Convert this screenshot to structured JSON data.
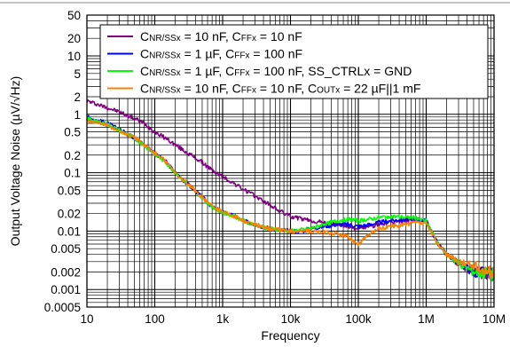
{
  "chart_data": {
    "type": "line",
    "title": "",
    "xlabel": "Frequency",
    "ylabel": "Output Voltage Noise (µV/√Hz)",
    "x_scale": "log",
    "y_scale": "log",
    "xlim": [
      10,
      10000000
    ],
    "ylim": [
      0.0005,
      50
    ],
    "grid": true,
    "legend_position": "top-right",
    "x_ticks": [
      {
        "value": 10,
        "label": "10"
      },
      {
        "value": 100,
        "label": "100"
      },
      {
        "value": 1000,
        "label": "1k"
      },
      {
        "value": 10000,
        "label": "10k"
      },
      {
        "value": 100000,
        "label": "100k"
      },
      {
        "value": 1000000,
        "label": "1M"
      },
      {
        "value": 10000000,
        "label": "10M"
      }
    ],
    "y_ticks": [
      {
        "value": 50,
        "label": "50"
      },
      {
        "value": 20,
        "label": "20"
      },
      {
        "value": 10,
        "label": "10"
      },
      {
        "value": 5,
        "label": "5"
      },
      {
        "value": 2,
        "label": "2"
      },
      {
        "value": 1,
        "label": "1"
      },
      {
        "value": 0.5,
        "label": "0.5"
      },
      {
        "value": 0.2,
        "label": "0.2"
      },
      {
        "value": 0.1,
        "label": "0.1"
      },
      {
        "value": 0.05,
        "label": "0.05"
      },
      {
        "value": 0.02,
        "label": "0.02"
      },
      {
        "value": 0.01,
        "label": "0.01"
      },
      {
        "value": 0.005,
        "label": "0.005"
      },
      {
        "value": 0.002,
        "label": "0.002"
      },
      {
        "value": 0.001,
        "label": "0.001"
      },
      {
        "value": 0.0005,
        "label": "0.0005"
      }
    ],
    "series": [
      {
        "name": "CNR/SSx = 10 nF, CFFx = 10 nF",
        "legend": {
          "parts": [
            [
              "C",
              ""
            ],
            [
              "NR/SSx",
              "sub"
            ],
            [
              " = 10 nF, C",
              ""
            ],
            [
              "FFx",
              "sub"
            ],
            [
              " = 10 nF",
              ""
            ]
          ]
        },
        "color": "#800080",
        "x": [
          10,
          20,
          30,
          50,
          70,
          100,
          150,
          200,
          300,
          500,
          700,
          1000,
          1500,
          2000,
          3000,
          5000,
          7000,
          10000,
          15000,
          20000,
          30000,
          50000,
          70000,
          100000,
          150000,
          200000,
          300000,
          500000,
          700000,
          1000000,
          1500000,
          2000000,
          3000000,
          5000000,
          7000000,
          10000000
        ],
        "y": [
          1.7,
          1.3,
          1.1,
          0.85,
          0.7,
          0.5,
          0.38,
          0.3,
          0.22,
          0.15,
          0.11,
          0.085,
          0.065,
          0.052,
          0.04,
          0.028,
          0.022,
          0.018,
          0.016,
          0.015,
          0.014,
          0.013,
          0.012,
          0.011,
          0.012,
          0.013,
          0.014,
          0.015,
          0.016,
          0.015,
          0.006,
          0.004,
          0.0028,
          0.002,
          0.0019,
          0.0018
        ]
      },
      {
        "name": "CNR/SSx = 1 µF, CFFx = 100 nF",
        "legend": {
          "parts": [
            [
              "C",
              ""
            ],
            [
              "NR/SSx",
              "sub"
            ],
            [
              " = 1 µF, C",
              ""
            ],
            [
              "FFx",
              "sub"
            ],
            [
              " = 100 nF",
              ""
            ]
          ]
        },
        "color": "#0000ff",
        "x": [
          10,
          20,
          30,
          50,
          70,
          100,
          150,
          200,
          300,
          500,
          700,
          1000,
          1500,
          2000,
          3000,
          5000,
          7000,
          10000,
          15000,
          20000,
          30000,
          50000,
          70000,
          100000,
          150000,
          200000,
          300000,
          500000,
          700000,
          1000000,
          1500000,
          2000000,
          3000000,
          5000000,
          7000000,
          10000000
        ],
        "y": [
          0.9,
          0.7,
          0.55,
          0.4,
          0.3,
          0.22,
          0.15,
          0.1,
          0.065,
          0.038,
          0.026,
          0.021,
          0.018,
          0.015,
          0.013,
          0.011,
          0.0105,
          0.01,
          0.01,
          0.011,
          0.012,
          0.013,
          0.013,
          0.012,
          0.013,
          0.014,
          0.015,
          0.016,
          0.016,
          0.015,
          0.006,
          0.004,
          0.0028,
          0.002,
          0.0019,
          0.0018
        ]
      },
      {
        "name": "CNR/SSx = 1 µF, CFFx = 100 nF, SS_CTRLx = GND",
        "legend": {
          "parts": [
            [
              "C",
              ""
            ],
            [
              "NR/SSx",
              "sub"
            ],
            [
              " = 1 µF, C",
              ""
            ],
            [
              "FFx",
              "sub"
            ],
            [
              " = 100 nF, SS_CTRLx = GND",
              ""
            ]
          ]
        },
        "color": "#00ff00",
        "x": [
          10,
          20,
          30,
          50,
          70,
          100,
          150,
          200,
          300,
          500,
          700,
          1000,
          1500,
          2000,
          3000,
          5000,
          7000,
          10000,
          15000,
          20000,
          30000,
          50000,
          70000,
          100000,
          150000,
          200000,
          300000,
          500000,
          700000,
          1000000,
          1500000,
          2000000,
          3000000,
          5000000,
          7000000,
          10000000
        ],
        "y": [
          0.85,
          0.68,
          0.53,
          0.39,
          0.29,
          0.21,
          0.145,
          0.1,
          0.063,
          0.037,
          0.026,
          0.021,
          0.018,
          0.015,
          0.013,
          0.011,
          0.0105,
          0.01,
          0.0105,
          0.011,
          0.013,
          0.015,
          0.016,
          0.015,
          0.016,
          0.017,
          0.018,
          0.017,
          0.017,
          0.015,
          0.006,
          0.004,
          0.0028,
          0.002,
          0.0019,
          0.0018
        ]
      },
      {
        "name": "CNR/SSx = 10 nF, CFFx = 10 nF, COUTx = 22 µF||1 mF",
        "legend": {
          "parts": [
            [
              "C",
              ""
            ],
            [
              "NR/SSx",
              "sub"
            ],
            [
              " = 10 nF, C",
              ""
            ],
            [
              "FFx",
              "sub"
            ],
            [
              " = 10 nF, C",
              ""
            ],
            [
              "OUTx",
              "sub"
            ],
            [
              " = 22 µF||1 mF",
              ""
            ]
          ]
        },
        "color": "#ff8000",
        "x": [
          10,
          20,
          30,
          50,
          70,
          100,
          150,
          200,
          300,
          500,
          700,
          1000,
          1500,
          2000,
          3000,
          5000,
          7000,
          10000,
          15000,
          20000,
          30000,
          50000,
          70000,
          100000,
          150000,
          200000,
          300000,
          500000,
          700000,
          1000000,
          1500000,
          2000000,
          3000000,
          5000000,
          7000000,
          10000000
        ],
        "y": [
          0.8,
          0.65,
          0.52,
          0.4,
          0.3,
          0.22,
          0.15,
          0.1,
          0.065,
          0.038,
          0.027,
          0.021,
          0.018,
          0.015,
          0.013,
          0.011,
          0.0105,
          0.01,
          0.01,
          0.01,
          0.0095,
          0.009,
          0.008,
          0.006,
          0.009,
          0.011,
          0.012,
          0.013,
          0.014,
          0.013,
          0.006,
          0.004,
          0.003,
          0.0025,
          0.0022,
          0.002
        ]
      }
    ]
  }
}
